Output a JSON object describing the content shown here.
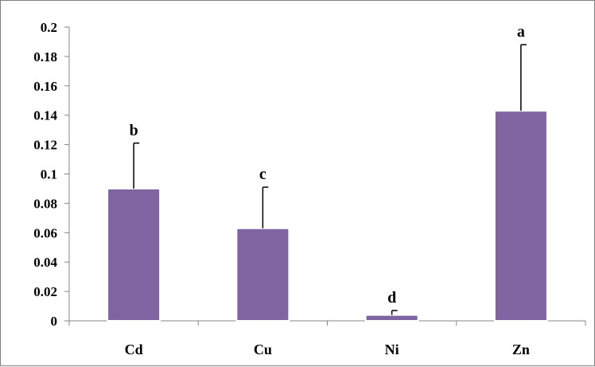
{
  "chart_data": {
    "type": "bar",
    "title": "",
    "xlabel": "",
    "ylabel": "",
    "categories": [
      "Cd",
      "Cu",
      "Ni",
      "Zn"
    ],
    "values": [
      0.09,
      0.063,
      0.004,
      0.143
    ],
    "error_upper": [
      0.031,
      0.028,
      0.003,
      0.045
    ],
    "significance_letters": [
      "b",
      "c",
      "d",
      "a"
    ],
    "ylim": [
      0,
      0.2
    ],
    "y_ticks": [
      "0",
      "0.02",
      "0.04",
      "0.06",
      "0.08",
      "0.1",
      "0.12",
      "0.14",
      "0.16",
      "0.18",
      "0.2"
    ],
    "grid": false,
    "legend": "none",
    "bar_color": "#8064A2",
    "bar_edge_color": "#ffffff"
  }
}
